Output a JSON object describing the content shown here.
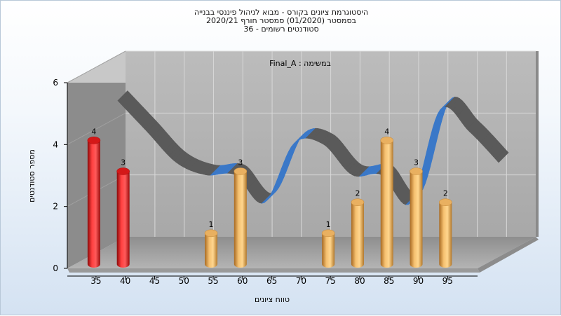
{
  "title": {
    "line1": "היסטוגרמת ציונים בקורס - מבוא לניהול פיננסי בבנייה",
    "line2": "בסמסטר  (01/2020)  סמסטר חורף 2020/21",
    "line3": "סטודנטים רשומים - 36"
  },
  "chart_data": {
    "type": "bar",
    "annotation": "במשימה : Final_A",
    "xlabel": "טווח ציונים",
    "ylabel": "מספר סטודנטים",
    "ylim": [
      0,
      6
    ],
    "yticks": [
      0,
      2,
      4,
      6
    ],
    "xticks": [
      35,
      40,
      45,
      50,
      55,
      60,
      65,
      70,
      75,
      80,
      85,
      90,
      95
    ],
    "x": [
      35,
      40,
      55,
      60,
      75,
      80,
      85,
      90,
      95
    ],
    "values": [
      4,
      3,
      1,
      3,
      1,
      2,
      4,
      3,
      2
    ],
    "bar_colors": [
      "#e02020",
      "#e02020",
      "#e0a040",
      "#e0a040",
      "#e0a040",
      "#e0a040",
      "#e0a040",
      "#e0a040",
      "#e0a040"
    ],
    "curve": {
      "x": [
        35,
        40,
        45,
        50,
        55,
        60,
        65,
        70,
        75,
        80,
        85,
        90,
        95,
        100
      ],
      "y": [
        4.9,
        3.9,
        2.9,
        2.5,
        2.5,
        1.6,
        3.5,
        3.5,
        2.5,
        2.5,
        1.6,
        4.6,
        3.9,
        2.9
      ],
      "colors": {
        "rising": "#3a78c8",
        "falling": "#5a5a5a"
      }
    },
    "grid": true,
    "style": "3d"
  }
}
